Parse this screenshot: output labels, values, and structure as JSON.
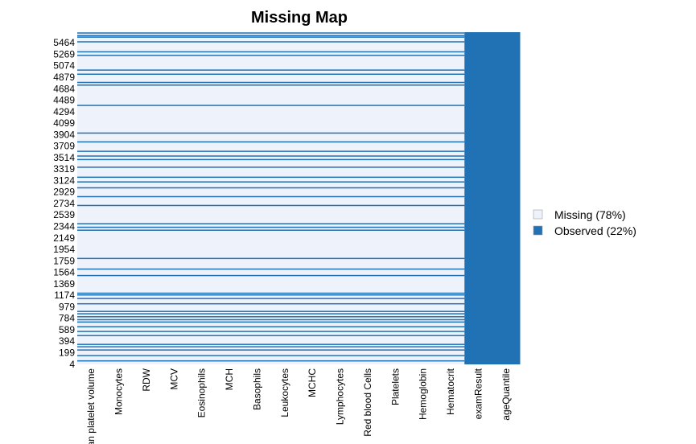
{
  "chart_data": {
    "type": "heatmap",
    "title": "Missing Map",
    "columns": [
      "Mean platelet volume",
      "Monocytes",
      "RDW",
      "MCV",
      "Eosinophils",
      "MCH",
      "Basophils",
      "Leukocytes",
      "MCHC",
      "Lymphocytes",
      "Red blood Cells",
      "Platelets",
      "Hemoglobin",
      "Hematocrit",
      "examResult",
      "ageQuantile"
    ],
    "row_tick_labels": [
      "4",
      "199",
      "394",
      "589",
      "784",
      "979",
      "1174",
      "1369",
      "1564",
      "1759",
      "1954",
      "2149",
      "2344",
      "2539",
      "2734",
      "2929",
      "3124",
      "3319",
      "3514",
      "3709",
      "3904",
      "4099",
      "4294",
      "4489",
      "4684",
      "4879",
      "5074",
      "5269",
      "5464"
    ],
    "row_range": [
      1,
      5644
    ],
    "fully_observed_columns": [
      "examResult",
      "ageQuantile"
    ],
    "observed_rows_in_blood_columns": [
      60,
      150,
      245,
      300,
      340,
      490,
      560,
      640,
      720,
      760,
      810,
      860,
      900,
      1030,
      1120,
      1180,
      1210,
      1510,
      1620,
      1800,
      2280,
      2330,
      2390,
      2700,
      2850,
      3000,
      3100,
      3180,
      3350,
      3480,
      3540,
      3620,
      3780,
      3930,
      4400,
      4745,
      4790,
      4930,
      5000,
      5250,
      5310,
      5480,
      5560,
      5585,
      5630
    ],
    "legend": [
      {
        "label": "Missing (78%)",
        "color": "#eef2fb"
      },
      {
        "label": "Observed (22%)",
        "color": "#2171b5"
      }
    ],
    "legend_position": "right",
    "colors": {
      "missing": "#eef2fb",
      "observed": "#2171b5"
    }
  }
}
